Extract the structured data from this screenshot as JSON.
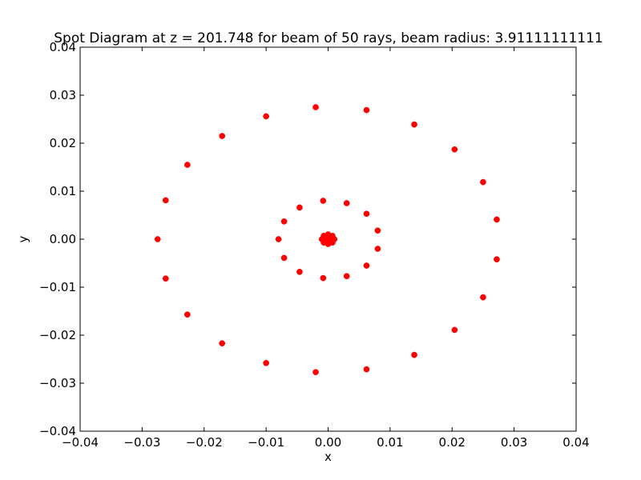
{
  "chart_data": {
    "type": "scatter",
    "title": "Spot Diagram at z = 201.748 for beam of 50 rays, beam radius: 3.91111111111",
    "xlabel": "x",
    "ylabel": "y",
    "xlim": [
      -0.04,
      0.04
    ],
    "ylim": [
      -0.04,
      0.04
    ],
    "x_ticks": [
      -0.04,
      -0.03,
      -0.02,
      -0.01,
      0.0,
      0.01,
      0.02,
      0.03,
      0.04
    ],
    "y_ticks": [
      -0.04,
      -0.03,
      -0.02,
      -0.01,
      0.0,
      0.01,
      0.02,
      0.03,
      0.04
    ],
    "x_tick_labels": [
      "−0.04",
      "−0.03",
      "−0.02",
      "−0.01",
      "0.00",
      "0.01",
      "0.02",
      "0.03",
      "0.04"
    ],
    "y_tick_labels": [
      "−0.04",
      "−0.03",
      "−0.02",
      "−0.01",
      "0.00",
      "0.01",
      "0.02",
      "0.03",
      "0.04"
    ],
    "grid": false,
    "marker_color": "#ff0000",
    "series": [
      {
        "points": [
          [
            0.0272,
            0.0041
          ],
          [
            0.025,
            0.0119
          ],
          [
            0.0204,
            0.0187
          ],
          [
            0.0139,
            0.0239
          ],
          [
            0.0062,
            0.0269
          ],
          [
            -0.002,
            0.0275
          ],
          [
            -0.01,
            0.0256
          ],
          [
            -0.0171,
            0.0215
          ],
          [
            -0.0227,
            0.0155
          ],
          [
            -0.0262,
            0.0081
          ],
          [
            -0.0275,
            0.0
          ],
          [
            -0.0262,
            -0.0082
          ],
          [
            -0.0227,
            -0.0157
          ],
          [
            -0.0171,
            -0.0217
          ],
          [
            -0.01,
            -0.0258
          ],
          [
            -0.002,
            -0.0277
          ],
          [
            0.0062,
            -0.0271
          ],
          [
            0.0139,
            -0.0241
          ],
          [
            0.0204,
            -0.0189
          ],
          [
            0.025,
            -0.0121
          ],
          [
            0.0272,
            -0.0042
          ],
          [
            0.008,
            0.0018
          ],
          [
            0.0062,
            0.0053
          ],
          [
            0.003,
            0.0075
          ],
          [
            -0.0008,
            0.008
          ],
          [
            -0.0046,
            0.0066
          ],
          [
            -0.0071,
            0.0037
          ],
          [
            -0.008,
            0.0
          ],
          [
            -0.0071,
            -0.0039
          ],
          [
            -0.0046,
            -0.0068
          ],
          [
            -0.0008,
            -0.0081
          ],
          [
            0.003,
            -0.0077
          ],
          [
            0.0062,
            -0.0055
          ],
          [
            0.008,
            -0.002
          ],
          [
            0.001,
            0.0
          ],
          [
            0.0007,
            0.0007
          ],
          [
            0.0,
            0.001
          ],
          [
            -0.0007,
            0.0007
          ],
          [
            -0.001,
            0.0
          ],
          [
            -0.0007,
            -0.0007
          ],
          [
            0.0,
            -0.001
          ],
          [
            0.0007,
            -0.0007
          ],
          [
            0.0004,
            0.0004
          ],
          [
            -0.0004,
            0.0004
          ],
          [
            -0.0004,
            -0.0004
          ],
          [
            0.0004,
            -0.0004
          ],
          [
            0.0,
            0.0
          ],
          [
            0.0005,
            0.0
          ],
          [
            -0.0005,
            0.0
          ],
          [
            0.0,
            0.0005
          ]
        ]
      }
    ]
  }
}
